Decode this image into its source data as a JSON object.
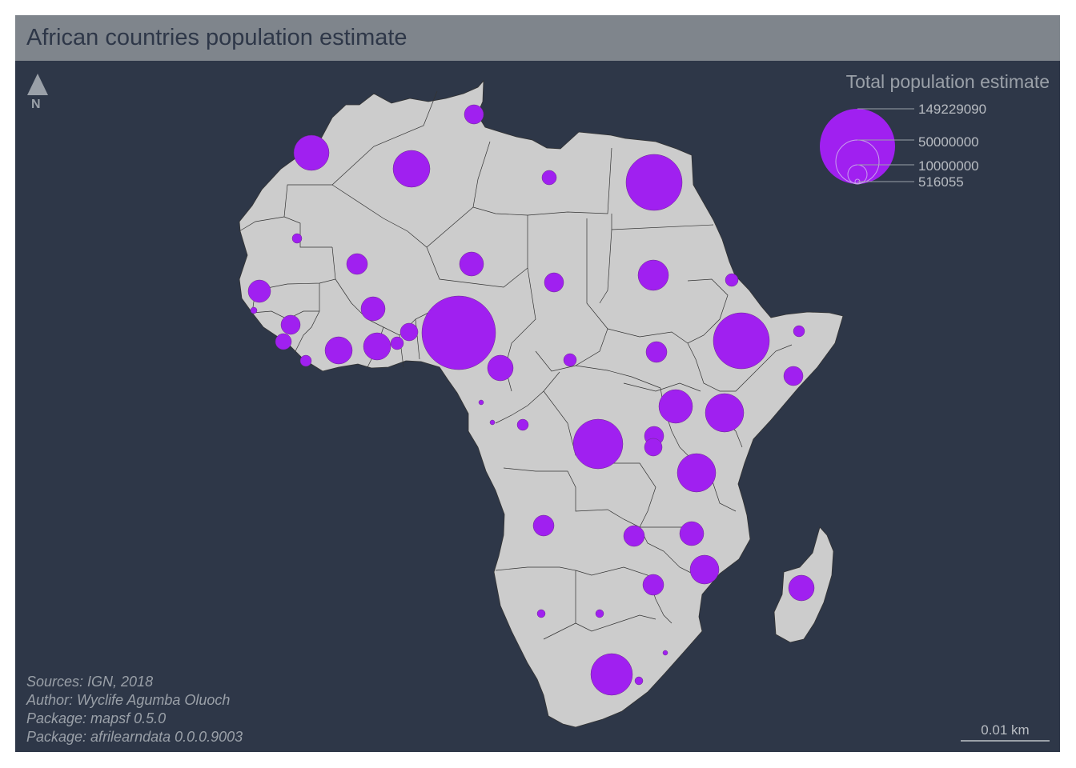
{
  "title": "African countries population estimate",
  "north_arrow": {
    "label": "N"
  },
  "legend": {
    "title": "Total population estimate",
    "values": [
      "149229090",
      "50000000",
      "10000000",
      "516055"
    ]
  },
  "credits": [
    "Sources: IGN, 2018",
    "Author: Wyclife Agumba Oluoch",
    "Package: mapsf 0.5.0",
    "Package: afrilearndata 0.0.0.9003"
  ],
  "scale_bar": {
    "label": "0.01 km"
  },
  "colors": {
    "background": "#2e3748",
    "title_bar": "#7f858c",
    "land": "#cccccc",
    "border": "#333333",
    "symbol": "#a020f0"
  },
  "symbol_variable": "Total population estimate"
}
